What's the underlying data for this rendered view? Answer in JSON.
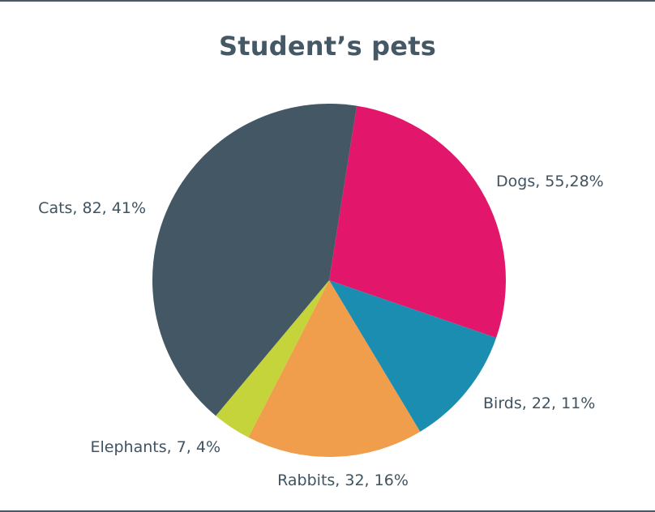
{
  "chart_data": {
    "type": "pie",
    "title": "Student’s pets",
    "categories": [
      "Dogs",
      "Birds",
      "Rabbits",
      "Elephants",
      "Cats"
    ],
    "values": [
      55,
      22,
      32,
      7,
      82
    ],
    "percentages": [
      28,
      11,
      16,
      4,
      41
    ],
    "labels": [
      "Dogs, 55,28%",
      "Birds, 22, 11%",
      "Rabbits, 32, 16%",
      "Elephants, 7, 4%",
      "Cats, 82, 41%"
    ],
    "colors": [
      "#e2176b",
      "#1a8db0",
      "#f09d4c",
      "#c5d43a",
      "#435765"
    ],
    "start_angle_deg": 9
  }
}
